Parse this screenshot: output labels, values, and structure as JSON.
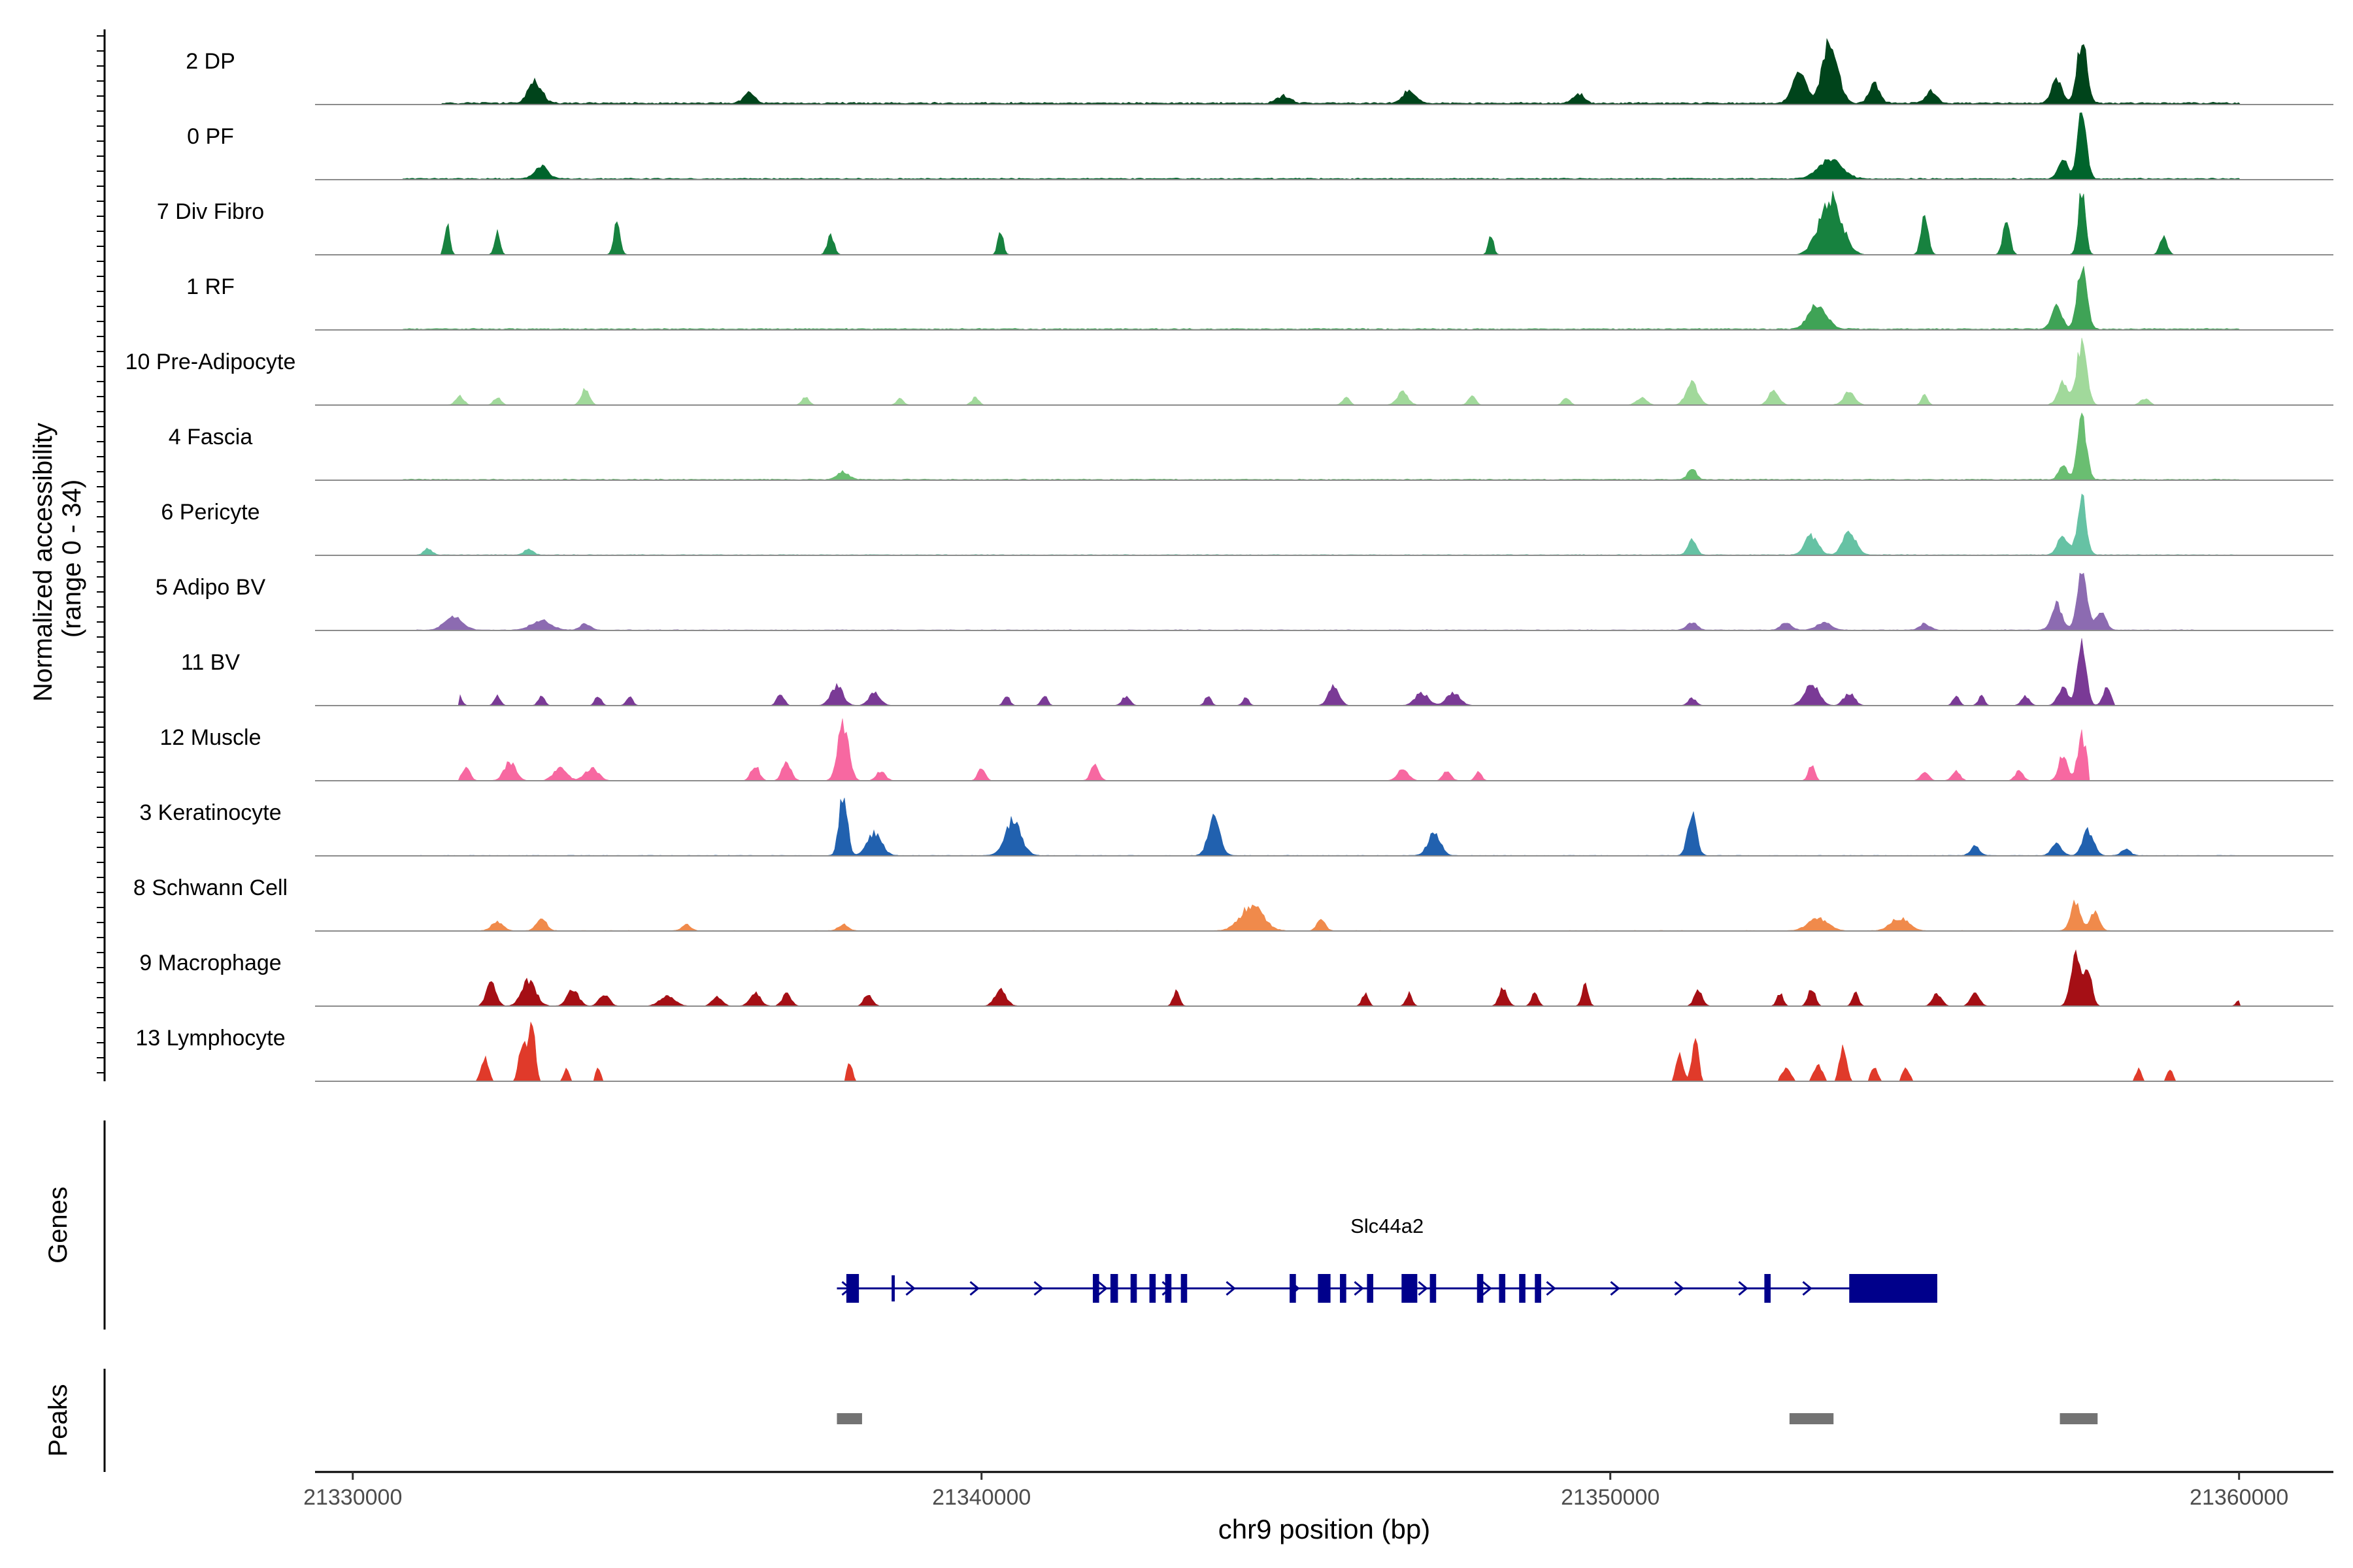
{
  "chart_data": {
    "type": "area",
    "region": {
      "chrom": "chr9",
      "start": 21329400,
      "end": 21361500
    },
    "ylabel": [
      "Normalized accessibility",
      "(range 0 - 34)"
    ],
    "xlabel": "chr9 position (bp)",
    "y_range": [
      0,
      34
    ],
    "x_ticks": [
      21330000,
      21340000,
      21350000,
      21360000
    ],
    "x_tick_labels": [
      "21330000",
      "21340000",
      "21350000",
      "21360000"
    ],
    "tracks": [
      {
        "name": "2 DP",
        "color": "#00441B",
        "baseline": 0.15,
        "noise": 0.12,
        "start": 21331400,
        "end": 21360000,
        "peaks": [
          [
            21332900,
            0.35,
            150
          ],
          [
            21336300,
            0.18,
            120
          ],
          [
            21344800,
            0.12,
            150
          ],
          [
            21346800,
            0.2,
            140
          ],
          [
            21349500,
            0.15,
            120
          ],
          [
            21353000,
            0.5,
            150
          ],
          [
            21353500,
            1.0,
            170
          ],
          [
            21354200,
            0.3,
            120
          ],
          [
            21355100,
            0.2,
            120
          ],
          [
            21357500,
            1.0,
            110
          ],
          [
            21357100,
            0.35,
            120
          ]
        ]
      },
      {
        "name": "0 PF",
        "color": "#00642C",
        "baseline": 0.1,
        "noise": 0.1,
        "start": 21330800,
        "end": 21360000,
        "peaks": [
          [
            21333000,
            0.2,
            150
          ],
          [
            21353500,
            0.3,
            260
          ],
          [
            21357500,
            1.0,
            100
          ],
          [
            21357200,
            0.3,
            110
          ]
        ]
      },
      {
        "name": "7 Div Fibro",
        "color": "#17823F",
        "baseline": 0.0,
        "noise": 0.05,
        "start": 21331400,
        "end": 21359500,
        "peaks": [
          [
            21331500,
            0.5,
            60
          ],
          [
            21332300,
            0.4,
            60
          ],
          [
            21334200,
            0.5,
            70
          ],
          [
            21337600,
            0.3,
            80
          ],
          [
            21340300,
            0.4,
            60
          ],
          [
            21348100,
            0.3,
            60
          ],
          [
            21353500,
            0.9,
            250
          ],
          [
            21355000,
            0.6,
            80
          ],
          [
            21356300,
            0.5,
            80
          ],
          [
            21357500,
            1.0,
            80
          ],
          [
            21358800,
            0.3,
            80
          ]
        ]
      },
      {
        "name": "1 RF",
        "color": "#3FA356",
        "baseline": 0.1,
        "noise": 0.08,
        "start": 21330800,
        "end": 21360000,
        "peaks": [
          [
            21353300,
            0.4,
            200
          ],
          [
            21357100,
            0.4,
            110
          ],
          [
            21357500,
            1.0,
            110
          ]
        ]
      },
      {
        "name": "10 Pre-Adipocyte",
        "color": "#A1D99B",
        "baseline": 0.0,
        "noise": 0.06,
        "start": 21331500,
        "end": 21359400,
        "peaks": [
          [
            21331700,
            0.15,
            90
          ],
          [
            21332300,
            0.12,
            80
          ],
          [
            21333700,
            0.25,
            90
          ],
          [
            21337200,
            0.12,
            80
          ],
          [
            21338700,
            0.1,
            80
          ],
          [
            21339900,
            0.12,
            80
          ],
          [
            21345800,
            0.12,
            80
          ],
          [
            21346700,
            0.2,
            120
          ],
          [
            21347800,
            0.15,
            80
          ],
          [
            21349300,
            0.12,
            80
          ],
          [
            21350500,
            0.12,
            110
          ],
          [
            21351300,
            0.35,
            130
          ],
          [
            21352600,
            0.25,
            110
          ],
          [
            21353800,
            0.2,
            130
          ],
          [
            21355000,
            0.15,
            70
          ],
          [
            21357200,
            0.35,
            120
          ],
          [
            21357500,
            1.0,
            110
          ],
          [
            21358500,
            0.1,
            100
          ]
        ]
      },
      {
        "name": "4 Fascia",
        "color": "#6ABE71",
        "baseline": 0.08,
        "noise": 0.06,
        "start": 21330800,
        "end": 21360000,
        "peaks": [
          [
            21337800,
            0.12,
            130
          ],
          [
            21351300,
            0.2,
            90
          ],
          [
            21357200,
            0.25,
            90
          ],
          [
            21357500,
            1.0,
            100
          ]
        ]
      },
      {
        "name": "6 Pericyte",
        "color": "#66C2A4",
        "baseline": 0.05,
        "noise": 0.06,
        "start": 21331000,
        "end": 21360000,
        "peaks": [
          [
            21331200,
            0.1,
            90
          ],
          [
            21332800,
            0.1,
            90
          ],
          [
            21351300,
            0.25,
            90
          ],
          [
            21353200,
            0.3,
            150
          ],
          [
            21353800,
            0.35,
            150
          ],
          [
            21357200,
            0.3,
            120
          ],
          [
            21357500,
            0.9,
            100
          ]
        ]
      },
      {
        "name": "5 Adipo BV",
        "color": "#8C6BB1",
        "baseline": 0.04,
        "noise": 0.06,
        "start": 21331000,
        "end": 21359300,
        "peaks": [
          [
            21331600,
            0.2,
            200
          ],
          [
            21333000,
            0.15,
            220
          ],
          [
            21333700,
            0.1,
            120
          ],
          [
            21351300,
            0.12,
            120
          ],
          [
            21352800,
            0.12,
            120
          ],
          [
            21353400,
            0.12,
            160
          ],
          [
            21355000,
            0.1,
            120
          ],
          [
            21357100,
            0.4,
            120
          ],
          [
            21357500,
            1.0,
            110
          ],
          [
            21357800,
            0.3,
            110
          ]
        ]
      },
      {
        "name": "11 BV",
        "color": "#7A3A96",
        "baseline": 0.0,
        "noise": 0.04,
        "start": 21331700,
        "end": 21358000,
        "peaks": [
          [
            21331700,
            0.15,
            60
          ],
          [
            21332300,
            0.15,
            70
          ],
          [
            21333000,
            0.15,
            70
          ],
          [
            21333900,
            0.15,
            70
          ],
          [
            21334400,
            0.15,
            70
          ],
          [
            21336800,
            0.2,
            80
          ],
          [
            21337700,
            0.3,
            140
          ],
          [
            21338300,
            0.2,
            130
          ],
          [
            21340400,
            0.15,
            70
          ],
          [
            21341000,
            0.15,
            70
          ],
          [
            21342300,
            0.15,
            90
          ],
          [
            21343600,
            0.15,
            70
          ],
          [
            21344200,
            0.12,
            70
          ],
          [
            21345600,
            0.3,
            120
          ],
          [
            21347000,
            0.2,
            150
          ],
          [
            21347500,
            0.2,
            150
          ],
          [
            21351300,
            0.12,
            90
          ],
          [
            21353200,
            0.35,
            160
          ],
          [
            21353800,
            0.2,
            120
          ],
          [
            21355500,
            0.15,
            70
          ],
          [
            21355900,
            0.15,
            70
          ],
          [
            21356600,
            0.15,
            90
          ],
          [
            21357200,
            0.3,
            110
          ],
          [
            21357500,
            1.0,
            100
          ],
          [
            21357900,
            0.3,
            90
          ]
        ]
      },
      {
        "name": "12 Muscle",
        "color": "#F768A1",
        "baseline": 0.0,
        "noise": 0.04,
        "start": 21331700,
        "end": 21357600,
        "peaks": [
          [
            21331800,
            0.2,
            90
          ],
          [
            21332500,
            0.3,
            130
          ],
          [
            21333300,
            0.2,
            150
          ],
          [
            21333800,
            0.2,
            150
          ],
          [
            21336400,
            0.25,
            90
          ],
          [
            21336900,
            0.3,
            100
          ],
          [
            21337800,
            0.9,
            120
          ],
          [
            21338400,
            0.15,
            100
          ],
          [
            21340000,
            0.2,
            80
          ],
          [
            21341800,
            0.25,
            90
          ],
          [
            21346700,
            0.2,
            120
          ],
          [
            21347400,
            0.15,
            90
          ],
          [
            21347900,
            0.15,
            70
          ],
          [
            21353200,
            0.25,
            70
          ],
          [
            21355000,
            0.15,
            90
          ],
          [
            21355500,
            0.15,
            90
          ],
          [
            21356500,
            0.15,
            90
          ],
          [
            21357200,
            0.4,
            100
          ],
          [
            21357500,
            0.7,
            100
          ]
        ]
      },
      {
        "name": "3 Keratinocyte",
        "color": "#2161AF",
        "baseline": 0.04,
        "noise": 0.04,
        "start": 21331000,
        "end": 21360000,
        "peaks": [
          [
            21337800,
            1.0,
            90
          ],
          [
            21338300,
            0.35,
            160
          ],
          [
            21340500,
            0.55,
            180
          ],
          [
            21343700,
            0.6,
            130
          ],
          [
            21347200,
            0.35,
            140
          ],
          [
            21351300,
            0.65,
            100
          ],
          [
            21355800,
            0.15,
            100
          ],
          [
            21357100,
            0.2,
            110
          ],
          [
            21357600,
            0.4,
            120
          ],
          [
            21358200,
            0.1,
            100
          ]
        ]
      },
      {
        "name": "8 Schwann Cell",
        "color": "#F08A4B",
        "baseline": 0.03,
        "noise": 0.04,
        "start": 21331000,
        "end": 21359700,
        "peaks": [
          [
            21332300,
            0.15,
            130
          ],
          [
            21333000,
            0.2,
            110
          ],
          [
            21335300,
            0.1,
            100
          ],
          [
            21337800,
            0.1,
            110
          ],
          [
            21344300,
            0.4,
            250
          ],
          [
            21345400,
            0.2,
            90
          ],
          [
            21353300,
            0.2,
            220
          ],
          [
            21354600,
            0.2,
            200
          ],
          [
            21357400,
            0.45,
            110
          ],
          [
            21357700,
            0.3,
            100
          ]
        ]
      },
      {
        "name": "9 Macrophage",
        "color": "#A50F15",
        "baseline": 0.0,
        "noise": 0.04,
        "start": 21332000,
        "end": 21360000,
        "peaks": [
          [
            21332200,
            0.35,
            110
          ],
          [
            21332800,
            0.4,
            160
          ],
          [
            21333500,
            0.25,
            130
          ],
          [
            21334000,
            0.2,
            110
          ],
          [
            21335000,
            0.15,
            170
          ],
          [
            21335800,
            0.15,
            110
          ],
          [
            21336400,
            0.2,
            120
          ],
          [
            21336900,
            0.2,
            100
          ],
          [
            21338200,
            0.2,
            90
          ],
          [
            21340300,
            0.25,
            130
          ],
          [
            21343100,
            0.25,
            70
          ],
          [
            21346100,
            0.2,
            70
          ],
          [
            21346800,
            0.2,
            70
          ],
          [
            21348300,
            0.3,
            90
          ],
          [
            21348800,
            0.25,
            70
          ],
          [
            21349600,
            0.35,
            70
          ],
          [
            21351400,
            0.25,
            90
          ],
          [
            21352700,
            0.2,
            70
          ],
          [
            21353200,
            0.3,
            80
          ],
          [
            21353900,
            0.2,
            70
          ],
          [
            21355200,
            0.2,
            100
          ],
          [
            21355800,
            0.2,
            100
          ],
          [
            21357400,
            0.8,
            110
          ],
          [
            21357600,
            0.5,
            90
          ],
          [
            21360000,
            0.1,
            60
          ]
        ]
      },
      {
        "name": "13 Lymphocyte",
        "color": "#E03A2A",
        "baseline": 0.0,
        "noise": 0.0,
        "start": 21331900,
        "end": 21359300,
        "peaks": [
          [
            21332100,
            0.4,
            80
          ],
          [
            21332700,
            0.6,
            80
          ],
          [
            21332850,
            1.0,
            70
          ],
          [
            21333400,
            0.2,
            60
          ],
          [
            21333900,
            0.2,
            60
          ],
          [
            21337900,
            0.3,
            60
          ],
          [
            21351100,
            0.4,
            80
          ],
          [
            21351350,
            0.75,
            70
          ],
          [
            21352800,
            0.2,
            100
          ],
          [
            21353300,
            0.25,
            100
          ],
          [
            21353700,
            0.5,
            80
          ],
          [
            21354200,
            0.2,
            80
          ],
          [
            21354700,
            0.2,
            80
          ],
          [
            21358400,
            0.2,
            60
          ],
          [
            21358900,
            0.2,
            60
          ]
        ]
      }
    ],
    "genes": [
      {
        "name": "Slc44a2",
        "strand": "+",
        "start": 21337700,
        "end": 21355200,
        "color": "#00008B",
        "exons": [
          [
            21337850,
            21338050,
            "thick"
          ],
          [
            21338570,
            21338620,
            "thin"
          ],
          [
            21341770,
            21341870,
            "thick"
          ],
          [
            21342050,
            21342170,
            "thick"
          ],
          [
            21342370,
            21342470,
            "thick"
          ],
          [
            21342670,
            21342770,
            "thick"
          ],
          [
            21342920,
            21343020,
            "thick"
          ],
          [
            21343170,
            21343270,
            "thick"
          ],
          [
            21344900,
            21345000,
            "thick"
          ],
          [
            21345350,
            21345550,
            "thick"
          ],
          [
            21345700,
            21345800,
            "thick"
          ],
          [
            21346130,
            21346230,
            "thick"
          ],
          [
            21346680,
            21346930,
            "thick"
          ],
          [
            21347130,
            21347230,
            "thick"
          ],
          [
            21347880,
            21347980,
            "thick"
          ],
          [
            21348230,
            21348330,
            "thick"
          ],
          [
            21348550,
            21348650,
            "thick"
          ],
          [
            21348800,
            21348900,
            "thick"
          ],
          [
            21352450,
            21352550,
            "thick"
          ],
          [
            21353800,
            21355200,
            "utr"
          ]
        ]
      }
    ],
    "peak_regions": [
      [
        21337700,
        21338100
      ],
      [
        21352850,
        21353550
      ],
      [
        21357150,
        21357750
      ]
    ],
    "track_group_labels": [
      "Genes",
      "Peaks"
    ]
  }
}
